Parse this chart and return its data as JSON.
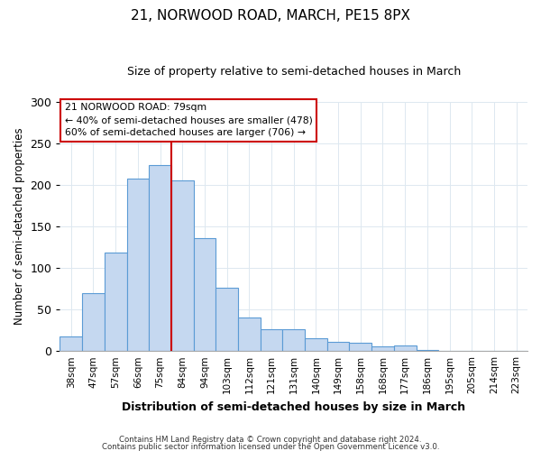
{
  "title": "21, NORWOOD ROAD, MARCH, PE15 8PX",
  "subtitle": "Size of property relative to semi-detached houses in March",
  "xlabel": "Distribution of semi-detached houses by size in March",
  "ylabel": "Number of semi-detached properties",
  "bar_labels": [
    "38sqm",
    "47sqm",
    "57sqm",
    "66sqm",
    "75sqm",
    "84sqm",
    "94sqm",
    "103sqm",
    "112sqm",
    "121sqm",
    "131sqm",
    "140sqm",
    "149sqm",
    "158sqm",
    "168sqm",
    "177sqm",
    "186sqm",
    "195sqm",
    "205sqm",
    "214sqm",
    "223sqm"
  ],
  "bar_values": [
    18,
    70,
    119,
    208,
    224,
    205,
    136,
    76,
    40,
    26,
    26,
    15,
    11,
    10,
    6,
    7,
    1,
    0,
    0,
    0,
    0
  ],
  "bar_color": "#c5d8f0",
  "bar_edge_color": "#5b9bd5",
  "property_line_x": 5.0,
  "line_color": "#cc0000",
  "annotation_box_edge": "#cc0000",
  "annotation_line1": "21 NORWOOD ROAD: 79sqm",
  "annotation_line2": "← 40% of semi-detached houses are smaller (478)",
  "annotation_line3": "60% of semi-detached houses are larger (706) →",
  "ylim": [
    0,
    300
  ],
  "yticks": [
    0,
    50,
    100,
    150,
    200,
    250,
    300
  ],
  "footer1": "Contains HM Land Registry data © Crown copyright and database right 2024.",
  "footer2": "Contains public sector information licensed under the Open Government Licence v3.0.",
  "bg_color": "#ffffff",
  "grid_color": "#dde8f0"
}
